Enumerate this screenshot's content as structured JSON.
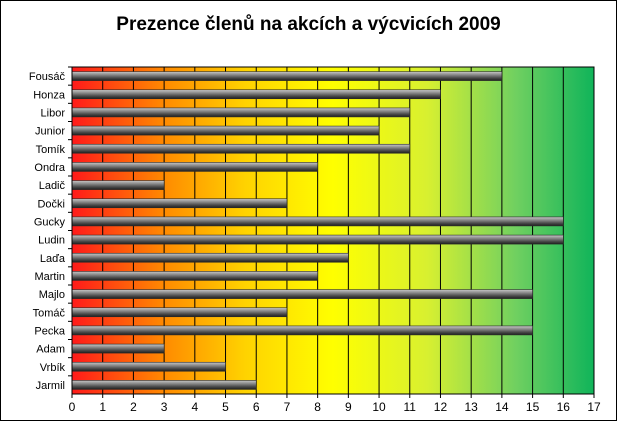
{
  "chart_data": {
    "type": "bar",
    "orientation": "horizontal",
    "title": "Prezence členů na akcích a výcvicích 2009",
    "xlabel": "",
    "ylabel": "",
    "categories": [
      "Fousáč",
      "Honza",
      "Libor",
      "Junior",
      "Tomík",
      "Ondra",
      "Ladič",
      "Dočki",
      "Gucky",
      "Ludin",
      "Laďa",
      "Martin",
      "Majlo",
      "Tomáč",
      "Pecka",
      "Adam",
      "Vrbík",
      "Jarmil"
    ],
    "values": [
      14,
      12,
      11,
      10,
      11,
      8,
      3,
      7,
      16,
      16,
      9,
      8,
      15,
      7,
      15,
      3,
      5,
      6
    ],
    "xlim": [
      0,
      17
    ],
    "xticks": [
      "0",
      "1",
      "2",
      "3",
      "4",
      "5",
      "6",
      "7",
      "8",
      "9",
      "10",
      "11",
      "12",
      "13",
      "14",
      "15",
      "16",
      "17"
    ],
    "grid": "vertical",
    "legend": "none",
    "bar_color": "#707070",
    "background_gradient": [
      "#ff2020",
      "#ffff00",
      "#10b860"
    ]
  }
}
